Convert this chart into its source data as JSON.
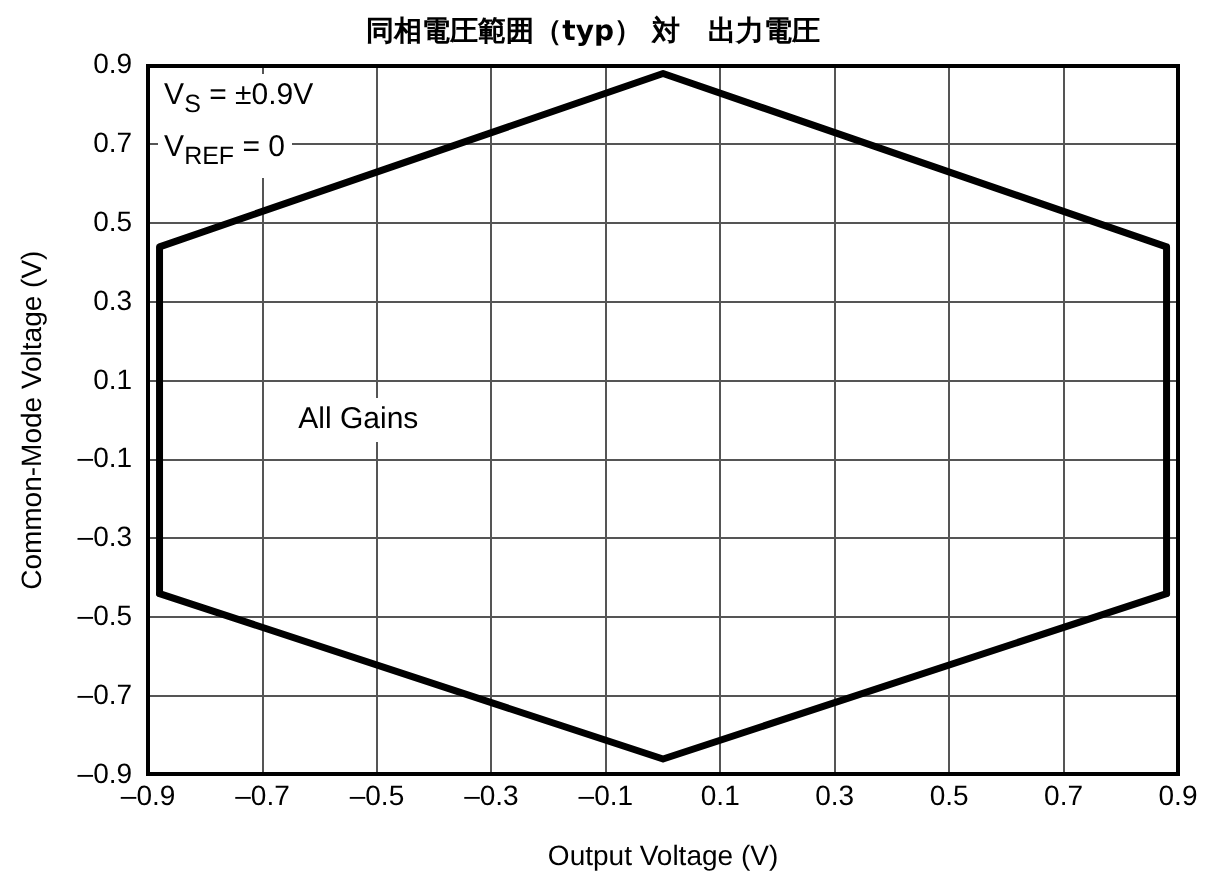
{
  "chart_data": {
    "type": "line",
    "title": "同相電圧範囲（typ） 対　出力電圧",
    "xlabel": "Output Voltage (V)",
    "ylabel": "Common-Mode Voltage (V)",
    "xlim": [
      -0.9,
      0.9
    ],
    "xticks": [
      {
        "value": -0.9,
        "label": "–0.9"
      },
      {
        "value": -0.7,
        "label": "–0.7"
      },
      {
        "value": -0.5,
        "label": "–0.5"
      },
      {
        "value": -0.3,
        "label": "–0.3"
      },
      {
        "value": -0.1,
        "label": "–0.1"
      },
      0.1,
      0.3,
      0.5,
      0.7,
      0.9
    ],
    "ylim": [
      -0.9,
      0.9
    ],
    "yticks": [
      {
        "value": -0.9,
        "label": "–0.9"
      },
      {
        "value": -0.7,
        "label": "–0.7"
      },
      {
        "value": -0.5,
        "label": "–0.5"
      },
      {
        "value": -0.3,
        "label": "–0.3"
      },
      {
        "value": -0.1,
        "label": "–0.1"
      },
      0.1,
      0.3,
      0.5,
      0.7,
      0.9
    ],
    "grid": true,
    "series": [
      {
        "color": "#000000",
        "x": [
          -0.88,
          -0.88,
          0,
          0.88,
          0.88
        ],
        "values": [
          -0.44,
          0.44,
          0.88,
          0.44,
          -0.44
        ]
      },
      {
        "color": "#000000",
        "x": [
          -0.88,
          0,
          0.88
        ],
        "values": [
          -0.44,
          -0.86,
          -0.44
        ]
      }
    ],
    "annotations": [
      "V$_{S}$ = ±0.9V",
      "V$_{REF}$ = 0",
      "All Gains"
    ]
  }
}
